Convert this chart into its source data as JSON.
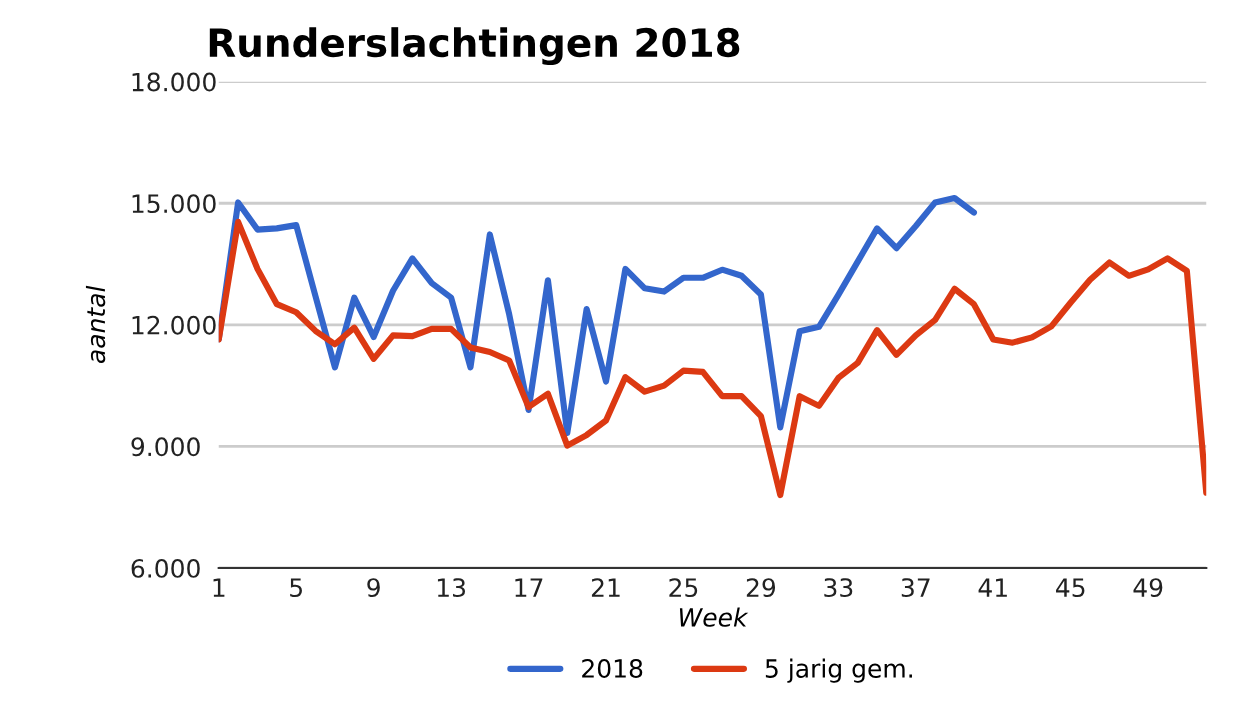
{
  "chart_data": {
    "type": "line",
    "title": "Runderslachtingen 2018",
    "xlabel": "Week",
    "ylabel": "aantal",
    "x": [
      1,
      2,
      3,
      4,
      5,
      6,
      7,
      8,
      9,
      10,
      11,
      12,
      13,
      14,
      15,
      16,
      17,
      18,
      19,
      20,
      21,
      22,
      23,
      24,
      25,
      26,
      27,
      28,
      29,
      30,
      31,
      32,
      33,
      34,
      35,
      36,
      37,
      38,
      39,
      40,
      41,
      42,
      43,
      44,
      45,
      46,
      47,
      48,
      49,
      50,
      51,
      52
    ],
    "series": [
      {
        "name": "2018",
        "color": "#3366cc",
        "values": [
          11640,
          15020,
          14350,
          14380,
          14460,
          12700,
          10950,
          12670,
          11700,
          12840,
          13640,
          13030,
          12670,
          10950,
          14230,
          12260,
          9900,
          13100,
          9330,
          12390,
          10600,
          13380,
          12900,
          12820,
          13160,
          13160,
          13360,
          13210,
          12750,
          9470,
          11840,
          11950,
          12740,
          13560,
          14380,
          13890,
          14440,
          15020,
          15130,
          14770,
          null,
          null,
          null,
          null,
          null,
          null,
          null,
          null,
          null,
          null,
          null,
          null
        ]
      },
      {
        "name": "5 jarig gem.",
        "color": "#dc3912",
        "values": [
          11640,
          14540,
          13380,
          12510,
          12310,
          11850,
          11520,
          11930,
          11160,
          11740,
          11720,
          11900,
          11900,
          11440,
          11330,
          11120,
          9970,
          10300,
          9020,
          9280,
          9640,
          10710,
          10350,
          10500,
          10870,
          10840,
          10240,
          10240,
          9750,
          7800,
          10240,
          10000,
          10690,
          11060,
          11870,
          11260,
          11740,
          12120,
          12890,
          12510,
          11640,
          11560,
          11690,
          11960,
          12550,
          13110,
          13540,
          13210,
          13370,
          13640,
          13330,
          7860
        ]
      }
    ],
    "xlim": [
      1,
      52
    ],
    "xticks": [
      1,
      5,
      9,
      13,
      17,
      21,
      25,
      29,
      33,
      37,
      41,
      45,
      49
    ],
    "ylim": [
      6000,
      18000
    ],
    "yticks": [
      {
        "value": 6000,
        "label": "6.000"
      },
      {
        "value": 9000,
        "label": "9.000"
      },
      {
        "value": 12000,
        "label": "12.000"
      },
      {
        "value": 15000,
        "label": "15.000"
      },
      {
        "value": 18000,
        "label": "18.000"
      }
    ],
    "grid": "y",
    "legend": "bottom",
    "line_style": "solid",
    "marker": "none"
  }
}
